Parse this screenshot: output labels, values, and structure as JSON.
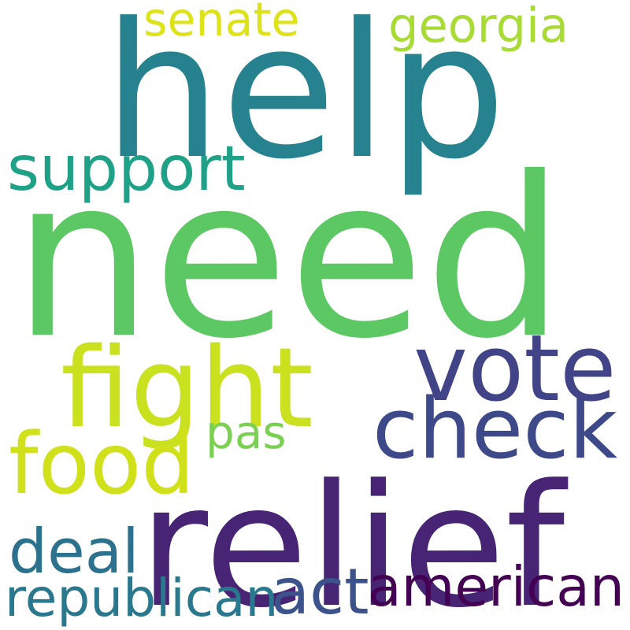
{
  "background": "#ffffff",
  "words": [
    {
      "id": "need",
      "text": "need",
      "color": "#5cc863"
    },
    {
      "id": "help",
      "text": "help",
      "color": "#26828e"
    },
    {
      "id": "relief",
      "text": "relief",
      "color": "#482475"
    },
    {
      "id": "check",
      "text": "check",
      "color": "#3e4989"
    },
    {
      "id": "fight",
      "text": "fight",
      "color": "#cae11f"
    },
    {
      "id": "vote",
      "text": "vote",
      "color": "#414487"
    },
    {
      "id": "food",
      "text": "food",
      "color": "#d0e11c"
    },
    {
      "id": "support",
      "text": "support",
      "color": "#1fa187"
    },
    {
      "id": "american",
      "text": "american",
      "color": "#440154"
    },
    {
      "id": "republican",
      "text": "republican",
      "color": "#2a788e"
    },
    {
      "id": "act",
      "text": "act",
      "color": "#3b528b"
    },
    {
      "id": "deal",
      "text": "deal",
      "color": "#2c728e"
    },
    {
      "id": "senate",
      "text": "senate",
      "color": "#dde318"
    },
    {
      "id": "georgia",
      "text": "georgia",
      "color": "#a8db34"
    },
    {
      "id": "pas",
      "text": "pas",
      "color": "#7ad151"
    }
  ]
}
